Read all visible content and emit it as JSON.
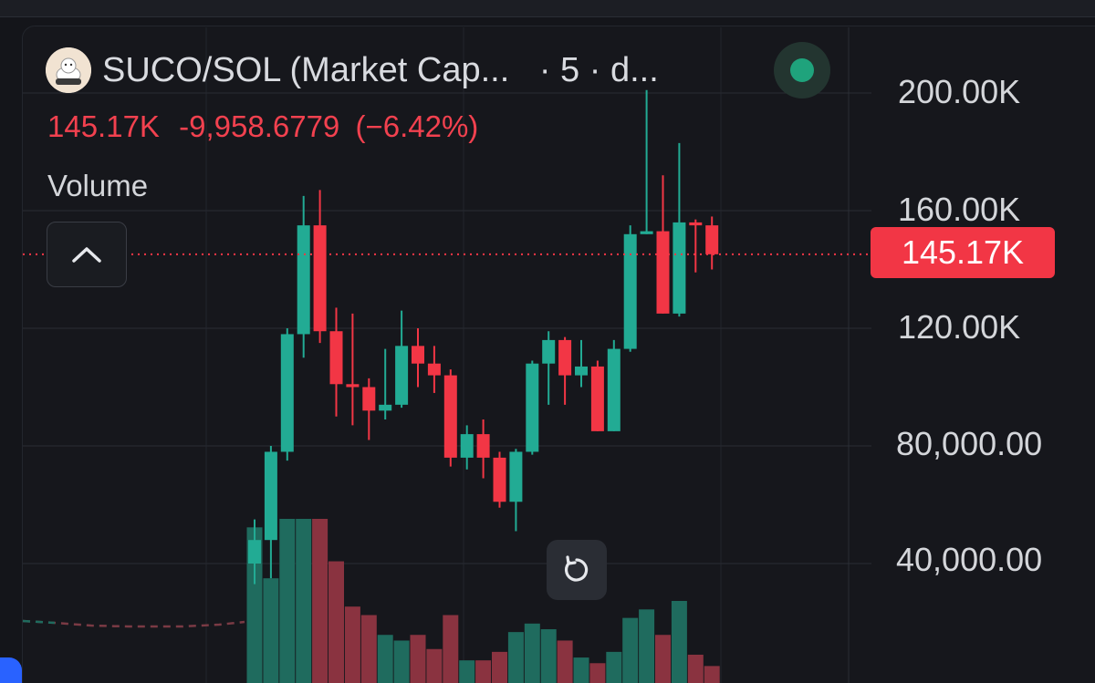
{
  "header": {
    "title": "SUCO/SOL (Market Cap...",
    "interval_label": "· 5 · d...",
    "last_value": "145.17K",
    "change_value": "-9,958.6779",
    "change_percent": "(−6.42%)",
    "volume_label": "Volume"
  },
  "price_scale": {
    "labels": [
      "200.00K",
      "160.00K",
      "120.00K",
      "80,000.00",
      "40,000.00"
    ],
    "current_price_label": "145.17K"
  },
  "colors": {
    "background": "#16171c",
    "up": "#22ab94",
    "down": "#f23645",
    "volume_up": "#1f6b5e",
    "volume_down": "#8a3340",
    "grid": "#2a2d35",
    "text": "#d4d6da"
  },
  "icons": {
    "collapse": "chevron-up-icon",
    "reset": "reset-icon",
    "status": "status-dot-icon",
    "logo": "token-logo-icon"
  },
  "chart_data": {
    "type": "candlestick",
    "ylim": [
      20000,
      210000
    ],
    "current_price": 145170,
    "grid": true,
    "candles": [
      {
        "o": 40000,
        "h": 55000,
        "l": 33000,
        "c": 48000
      },
      {
        "o": 48000,
        "h": 80000,
        "l": 35000,
        "c": 78000
      },
      {
        "o": 78000,
        "h": 120000,
        "l": 75000,
        "c": 118000
      },
      {
        "o": 118000,
        "h": 165000,
        "l": 110000,
        "c": 155000
      },
      {
        "o": 155000,
        "h": 167000,
        "l": 115000,
        "c": 119000
      },
      {
        "o": 119000,
        "h": 127000,
        "l": 90000,
        "c": 101000
      },
      {
        "o": 101000,
        "h": 125000,
        "l": 87000,
        "c": 100000
      },
      {
        "o": 100000,
        "h": 103000,
        "l": 82000,
        "c": 92000
      },
      {
        "o": 92000,
        "h": 113000,
        "l": 89000,
        "c": 94000
      },
      {
        "o": 94000,
        "h": 126000,
        "l": 93000,
        "c": 114000
      },
      {
        "o": 114000,
        "h": 120000,
        "l": 100000,
        "c": 108000
      },
      {
        "o": 108000,
        "h": 114000,
        "l": 98000,
        "c": 104000
      },
      {
        "o": 104000,
        "h": 106000,
        "l": 73000,
        "c": 76000
      },
      {
        "o": 76000,
        "h": 87000,
        "l": 72000,
        "c": 84000
      },
      {
        "o": 84000,
        "h": 89000,
        "l": 69000,
        "c": 76000
      },
      {
        "o": 76000,
        "h": 78000,
        "l": 59000,
        "c": 61000
      },
      {
        "o": 61000,
        "h": 79000,
        "l": 51000,
        "c": 78000
      },
      {
        "o": 78000,
        "h": 109000,
        "l": 77000,
        "c": 108000
      },
      {
        "o": 108000,
        "h": 119000,
        "l": 94000,
        "c": 116000
      },
      {
        "o": 116000,
        "h": 117000,
        "l": 94000,
        "c": 104000
      },
      {
        "o": 104000,
        "h": 116000,
        "l": 100000,
        "c": 107000
      },
      {
        "o": 107000,
        "h": 109000,
        "l": 85000,
        "c": 85000
      },
      {
        "o": 85000,
        "h": 116000,
        "l": 85000,
        "c": 113000
      },
      {
        "o": 113000,
        "h": 155000,
        "l": 112000,
        "c": 152000
      },
      {
        "o": 152000,
        "h": 201000,
        "l": 152000,
        "c": 153000
      },
      {
        "o": 153000,
        "h": 172000,
        "l": 125000,
        "c": 125000
      },
      {
        "o": 125000,
        "h": 183000,
        "l": 124000,
        "c": 156000
      },
      {
        "o": 156000,
        "h": 157000,
        "l": 139000,
        "c": 155000
      },
      {
        "o": 155000,
        "h": 158000,
        "l": 140000,
        "c": 145170
      }
    ],
    "volume_ylim": [
      0,
      100
    ],
    "volume": [
      55,
      37,
      58,
      58,
      58,
      43,
      27,
      24,
      17,
      15,
      17,
      12,
      24,
      8,
      8,
      11,
      18,
      21,
      19,
      15,
      9,
      7,
      11,
      23,
      26,
      17,
      29,
      10,
      6
    ]
  }
}
